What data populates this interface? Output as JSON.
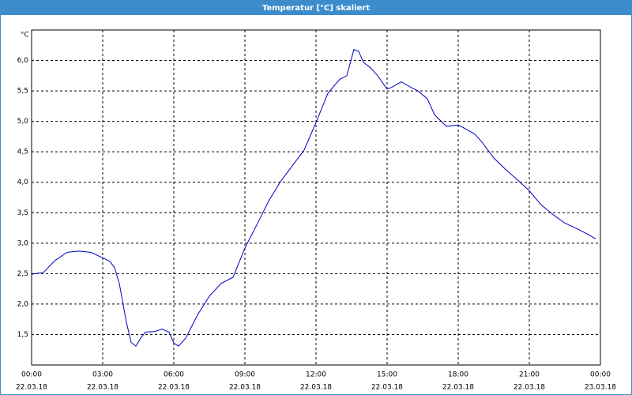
{
  "window_title": "Temperatur [°C] skaliert",
  "chart_data": {
    "type": "line",
    "y_unit": "°C",
    "x": [
      0,
      0.5,
      1,
      1.5,
      2,
      2.5,
      3,
      3.3,
      3.5,
      3.7,
      4,
      4.2,
      4.4,
      4.6,
      4.8,
      5.2,
      5.5,
      5.8,
      6,
      6.2,
      6.5,
      7,
      7.5,
      8,
      8.5,
      9,
      9.5,
      10,
      10.5,
      11,
      11.5,
      12,
      12.5,
      13,
      13.3,
      13.6,
      13.8,
      14,
      14.3,
      14.6,
      15,
      15.2,
      15.6,
      16,
      16.3,
      16.7,
      17,
      17.5,
      18,
      18.3,
      18.7,
      19,
      19.5,
      20,
      20.5,
      21,
      21.5,
      22,
      22.5,
      23,
      23.5,
      23.8
    ],
    "series": [
      {
        "name": "Temperatur",
        "color": "#0000c8",
        "values": [
          2.49,
          2.52,
          2.72,
          2.85,
          2.87,
          2.85,
          2.76,
          2.7,
          2.6,
          2.34,
          1.7,
          1.37,
          1.31,
          1.44,
          1.54,
          1.55,
          1.59,
          1.54,
          1.36,
          1.31,
          1.44,
          1.82,
          2.13,
          2.34,
          2.44,
          2.92,
          3.3,
          3.69,
          4.01,
          4.27,
          4.53,
          4.98,
          5.46,
          5.69,
          5.75,
          6.18,
          6.15,
          5.97,
          5.88,
          5.75,
          5.53,
          5.56,
          5.65,
          5.56,
          5.5,
          5.37,
          5.11,
          4.92,
          4.94,
          4.88,
          4.79,
          4.66,
          4.4,
          4.21,
          4.04,
          3.86,
          3.63,
          3.47,
          3.33,
          3.24,
          3.14,
          3.07
        ]
      }
    ],
    "xlim": [
      0,
      24
    ],
    "xticks": [
      {
        "value": 0,
        "label": "00:00"
      },
      {
        "value": 3,
        "label": "03:00"
      },
      {
        "value": 6,
        "label": "06:00"
      },
      {
        "value": 9,
        "label": "09:00"
      },
      {
        "value": 12,
        "label": "12:00"
      },
      {
        "value": 15,
        "label": "15:00"
      },
      {
        "value": 18,
        "label": "18:00"
      },
      {
        "value": 21,
        "label": "21:00"
      },
      {
        "value": 24,
        "label": "00:00"
      }
    ],
    "xtick_dates": [
      "22.03.18",
      "22.03.18",
      "22.03.18",
      "22.03.18",
      "22.03.18",
      "22.03.18",
      "22.03.18",
      "22.03.18",
      "23.03.18"
    ],
    "ylim": [
      1.0,
      6.5
    ],
    "yticks": [
      {
        "value": 1.5,
        "label": "1,5"
      },
      {
        "value": 2.0,
        "label": "2,0"
      },
      {
        "value": 2.5,
        "label": "2,5"
      },
      {
        "value": 3.0,
        "label": "3,0"
      },
      {
        "value": 3.5,
        "label": "3,5"
      },
      {
        "value": 4.0,
        "label": "4,0"
      },
      {
        "value": 4.5,
        "label": "4,5"
      },
      {
        "value": 5.0,
        "label": "5,0"
      },
      {
        "value": 5.5,
        "label": "5,5"
      },
      {
        "value": 6.0,
        "label": "6,0"
      }
    ],
    "grid": true
  }
}
